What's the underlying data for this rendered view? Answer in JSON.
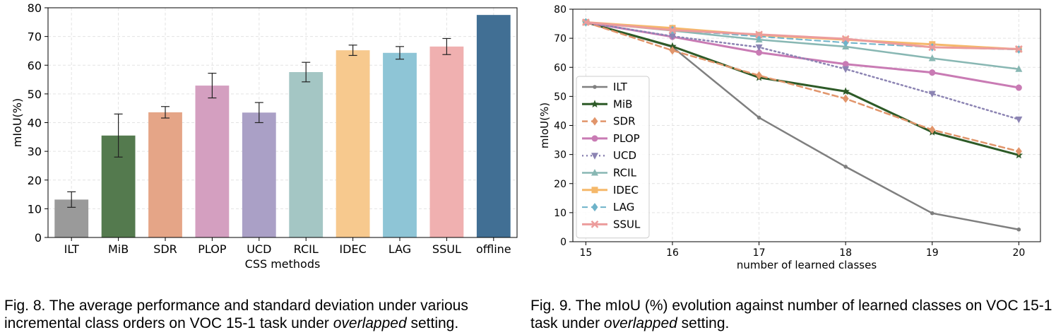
{
  "figure8": {
    "chart_data": {
      "type": "bar",
      "categories": [
        "ILT",
        "MiB",
        "SDR",
        "PLOP",
        "UCD",
        "RCIL",
        "IDEC",
        "LAG",
        "SSUL",
        "offline"
      ],
      "values": [
        13.2,
        35.5,
        43.6,
        52.9,
        43.5,
        57.6,
        65.2,
        64.3,
        66.5,
        77.5
      ],
      "error": [
        2.7,
        7.5,
        2.0,
        4.3,
        3.5,
        3.4,
        1.8,
        2.2,
        2.8,
        0
      ],
      "colors": [
        "#9a9a9a",
        "#547a4e",
        "#e5a587",
        "#d49fc0",
        "#aaa0c6",
        "#a4c6c4",
        "#f7c98e",
        "#8ec5d6",
        "#f0b0b0",
        "#416f94"
      ],
      "xlabel": "CSS methods",
      "ylabel": "mIoU(%)",
      "ylim": [
        0,
        80
      ],
      "yticks": [
        0,
        10,
        20,
        30,
        40,
        50,
        60,
        70,
        80
      ],
      "grid": true
    },
    "caption": {
      "prefix": "Fig. 8. The average performance and standard deviation under various incremental class orders on VOC 15-1 task under ",
      "italic": "overlapped",
      "suffix": " setting."
    }
  },
  "figure9": {
    "chart_data": {
      "type": "line",
      "x": [
        15,
        16,
        17,
        18,
        19,
        20
      ],
      "xlabel": "number of learned classes",
      "ylabel": "mIoU(%)",
      "xlim": [
        14.85,
        20.25
      ],
      "ylim": [
        0,
        80
      ],
      "yticks": [
        0,
        10,
        20,
        30,
        40,
        50,
        60,
        70,
        80
      ],
      "grid": true,
      "legend_position": "lower-left",
      "series": [
        {
          "name": "ILT",
          "values": [
            75.5,
            67.0,
            42.7,
            25.8,
            9.8,
            4.2
          ],
          "color": "#7f7f7f",
          "dash": "solid",
          "marker": "dot",
          "width": 2.5
        },
        {
          "name": "MiB",
          "values": [
            75.5,
            67.2,
            56.5,
            51.7,
            37.7,
            29.8
          ],
          "color": "#2d5a27",
          "dash": "solid",
          "marker": "star",
          "width": 3
        },
        {
          "name": "SDR",
          "values": [
            75.5,
            65.8,
            57.2,
            49.2,
            38.5,
            31.1
          ],
          "color": "#e1956b",
          "dash": "dashed",
          "marker": "diamond",
          "width": 2.5
        },
        {
          "name": "PLOP",
          "values": [
            75.5,
            70.5,
            65.1,
            61.1,
            58.2,
            53.0
          ],
          "color": "#c97bb4",
          "dash": "solid",
          "marker": "circle",
          "width": 3
        },
        {
          "name": "UCD",
          "values": [
            75.5,
            70.7,
            66.9,
            59.4,
            50.9,
            42.1
          ],
          "color": "#8c84b3",
          "dash": "dotted",
          "marker": "triangle-down",
          "width": 2.5
        },
        {
          "name": "RCIL",
          "values": [
            75.5,
            72.6,
            69.5,
            67.1,
            63.1,
            59.4
          ],
          "color": "#88b7b3",
          "dash": "solid",
          "marker": "triangle-up",
          "width": 2.5
        },
        {
          "name": "IDEC",
          "values": [
            75.5,
            73.5,
            71.1,
            69.5,
            67.9,
            66.2
          ],
          "color": "#f5b86a",
          "dash": "solid",
          "marker": "square",
          "width": 3
        },
        {
          "name": "LAG",
          "values": [
            75.5,
            72.9,
            70.6,
            68.5,
            66.9,
            66.1
          ],
          "color": "#6eb3c9",
          "dash": "dashed",
          "marker": "diamond",
          "width": 2
        },
        {
          "name": "SSUL",
          "values": [
            75.5,
            72.8,
            71.3,
            69.8,
            66.9,
            66.3
          ],
          "color": "#ec9c9c",
          "dash": "solid",
          "marker": "x",
          "width": 3
        }
      ]
    },
    "caption": {
      "prefix": "Fig. 9. The mIoU (%) evolution against number of learned classes on VOC 15-1 task under ",
      "italic": "overlapped",
      "suffix": " setting."
    }
  }
}
